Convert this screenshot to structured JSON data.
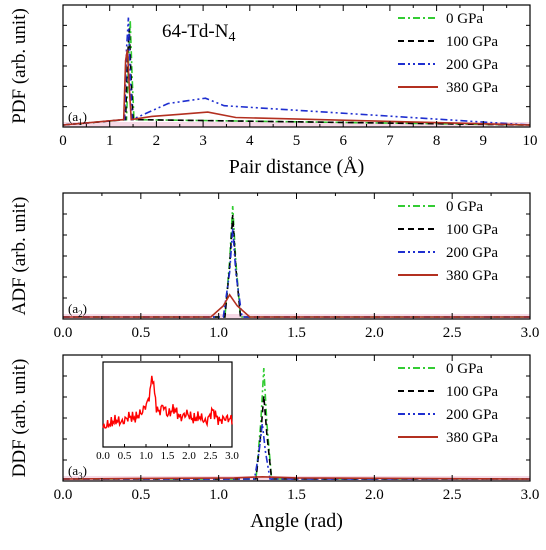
{
  "chart_data": [
    {
      "type": "line",
      "panel_label": "(a1)",
      "annotation": "64-Td-N4",
      "ylabel": "PDF (arb. unit)",
      "xlabel": "Pair distance (Å)",
      "xlim": [
        0,
        10
      ],
      "xticks": [
        "0",
        "1",
        "2",
        "3",
        "4",
        "5",
        "6",
        "7",
        "8",
        "9",
        "10"
      ],
      "legend_position": "top-right",
      "series": [
        {
          "name": "0 GPa",
          "color": "#33cc33",
          "dash": "dashdot",
          "x": [
            1.36,
            1.4,
            1.44,
            1.48,
            1.52
          ],
          "y": [
            0.05,
            0.55,
            0.98,
            0.45,
            0.05
          ]
        },
        {
          "name": "100 GPa",
          "color": "#000000",
          "dash": "dash",
          "x": [
            1.34,
            1.38,
            1.42,
            1.46,
            1.5
          ],
          "y": [
            0.05,
            0.6,
            0.9,
            0.4,
            0.05
          ]
        },
        {
          "name": "200 GPa",
          "color": "#1f2fd0",
          "dash": "dashdotdot",
          "x": [
            1.32,
            1.36,
            1.4,
            1.44,
            1.48,
            2.25,
            3.05,
            3.45
          ],
          "y": [
            0.05,
            0.7,
            1.0,
            0.45,
            0.05,
            0.2,
            0.25,
            0.18
          ]
        },
        {
          "name": "380 GPa",
          "color": "#b33020",
          "dash": "solid",
          "x": [
            1.3,
            1.34,
            1.38,
            1.42,
            1.46,
            1.9,
            2.5,
            3.1,
            3.7
          ],
          "y": [
            0.05,
            0.6,
            0.7,
            0.35,
            0.05,
            0.08,
            0.1,
            0.12,
            0.07
          ]
        }
      ]
    },
    {
      "type": "line",
      "panel_label": "(a2)",
      "ylabel": "ADF (arb. unit)",
      "xlabel": "",
      "xlim": [
        0.0,
        3.0
      ],
      "xticks": [
        "0.0",
        "0.5",
        "1.0",
        "1.5",
        "2.0",
        "2.5",
        "3.0"
      ],
      "legend_position": "top-right",
      "series": [
        {
          "name": "0 GPa",
          "color": "#33cc33",
          "dash": "dashdot",
          "x": [
            1.04,
            1.07,
            1.09,
            1.11,
            1.14
          ],
          "y": [
            0.0,
            0.5,
            1.0,
            0.5,
            0.0
          ]
        },
        {
          "name": "100 GPa",
          "color": "#000000",
          "dash": "dash",
          "x": [
            1.04,
            1.07,
            1.09,
            1.11,
            1.14
          ],
          "y": [
            0.0,
            0.45,
            0.92,
            0.45,
            0.0
          ]
        },
        {
          "name": "200 GPa",
          "color": "#1f2fd0",
          "dash": "dashdotdot",
          "x": [
            1.03,
            1.07,
            1.09,
            1.11,
            1.15
          ],
          "y": [
            0.0,
            0.4,
            0.8,
            0.4,
            0.0
          ]
        },
        {
          "name": "380 GPa",
          "color": "#b33020",
          "dash": "solid",
          "x": [
            0.95,
            1.03,
            1.07,
            1.12,
            1.2
          ],
          "y": [
            0.0,
            0.1,
            0.2,
            0.1,
            0.0
          ]
        }
      ]
    },
    {
      "type": "line",
      "panel_label": "(a3)",
      "ylabel": "DDF (arb. unit)",
      "xlabel": "Angle (rad)",
      "xlim": [
        0.0,
        3.0
      ],
      "xticks": [
        "0.0",
        "0.5",
        "1.0",
        "1.5",
        "2.0",
        "2.5",
        "3.0"
      ],
      "legend_position": "top-right",
      "series": [
        {
          "name": "0 GPa",
          "color": "#33cc33",
          "dash": "dashdot",
          "x": [
            1.24,
            1.27,
            1.29,
            1.31,
            1.34
          ],
          "y": [
            0.0,
            0.5,
            1.0,
            0.5,
            0.0
          ]
        },
        {
          "name": "100 GPa",
          "color": "#000000",
          "dash": "dash",
          "x": [
            1.24,
            1.27,
            1.29,
            1.31,
            1.34
          ],
          "y": [
            0.0,
            0.4,
            0.75,
            0.4,
            0.0
          ]
        },
        {
          "name": "200 GPa",
          "color": "#1f2fd0",
          "dash": "dashdotdot",
          "x": [
            1.23,
            1.26,
            1.28,
            1.3,
            1.33
          ],
          "y": [
            0.0,
            0.25,
            0.5,
            0.25,
            0.0
          ]
        },
        {
          "name": "380 GPa",
          "color": "#b33020",
          "dash": "solid",
          "x": [
            1.1,
            1.28,
            1.5
          ],
          "y": [
            0.01,
            0.02,
            0.01
          ]
        }
      ],
      "inset": {
        "xlim": [
          0.0,
          3.0
        ],
        "xticks": [
          "0.0",
          "0.5",
          "1.0",
          "1.5",
          "2.0",
          "2.5",
          "3.0"
        ],
        "series_name": "380 GPa",
        "color": "#ff0000",
        "x": [
          0.0,
          0.15,
          0.3,
          0.45,
          0.6,
          0.75,
          0.9,
          1.0,
          1.05,
          1.1,
          1.15,
          1.2,
          1.25,
          1.3,
          1.4,
          1.5,
          1.65,
          1.8,
          1.95,
          2.1,
          2.25,
          2.4,
          2.55,
          2.7,
          2.85,
          3.0
        ],
        "y": [
          0.25,
          0.3,
          0.35,
          0.32,
          0.4,
          0.38,
          0.45,
          0.55,
          0.6,
          0.75,
          0.95,
          0.7,
          0.5,
          0.45,
          0.55,
          0.42,
          0.5,
          0.38,
          0.44,
          0.36,
          0.4,
          0.32,
          0.48,
          0.34,
          0.38,
          0.36
        ]
      }
    }
  ]
}
